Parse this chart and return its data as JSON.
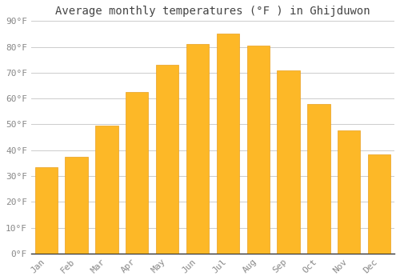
{
  "title": "Average monthly temperatures (°F ) in Ghijduwon",
  "months": [
    "Jan",
    "Feb",
    "Mar",
    "Apr",
    "May",
    "Jun",
    "Jul",
    "Aug",
    "Sep",
    "Oct",
    "Nov",
    "Dec"
  ],
  "values": [
    33.5,
    37.5,
    49.5,
    62.5,
    73,
    81,
    85,
    80.5,
    71,
    58,
    47.5,
    38.5
  ],
  "bar_color": "#FDB827",
  "bar_edge_color": "#E8A020",
  "background_color": "#ffffff",
  "grid_color": "#cccccc",
  "ylim": [
    0,
    90
  ],
  "yticks": [
    0,
    10,
    20,
    30,
    40,
    50,
    60,
    70,
    80,
    90
  ],
  "ytick_labels": [
    "0°F",
    "10°F",
    "20°F",
    "30°F",
    "40°F",
    "50°F",
    "60°F",
    "70°F",
    "80°F",
    "90°F"
  ],
  "title_fontsize": 10,
  "tick_fontsize": 8,
  "font_family": "monospace",
  "title_color": "#444444",
  "tick_color": "#888888"
}
